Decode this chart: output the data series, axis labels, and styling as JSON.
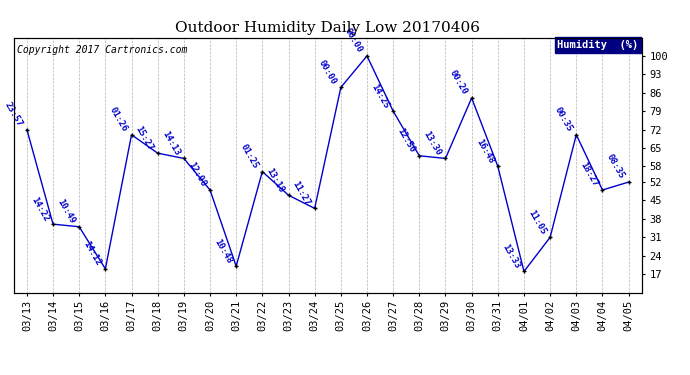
{
  "title": "Outdoor Humidity Daily Low 20170406",
  "copyright_text": "Copyright 2017 Cartronics.com",
  "legend_label": "Humidity  (%)",
  "background_color": "#ffffff",
  "plot_bg_color": "#ffffff",
  "line_color": "#0000cc",
  "marker_color": "#000000",
  "grid_color": "#aaaaaa",
  "dates": [
    "03/13",
    "03/14",
    "03/15",
    "03/16",
    "03/17",
    "03/18",
    "03/19",
    "03/20",
    "03/21",
    "03/22",
    "03/23",
    "03/24",
    "03/25",
    "03/26",
    "03/27",
    "03/28",
    "03/29",
    "03/30",
    "03/31",
    "04/01",
    "04/02",
    "04/03",
    "04/04",
    "04/05"
  ],
  "values": [
    72,
    36,
    35,
    19,
    70,
    63,
    61,
    49,
    20,
    56,
    47,
    42,
    88,
    100,
    79,
    62,
    61,
    84,
    58,
    18,
    31,
    70,
    49,
    52
  ],
  "times": [
    "23:57",
    "14:22",
    "10:49",
    "14:12",
    "01:26",
    "15:27",
    "14:13",
    "12:08",
    "10:48",
    "01:25",
    "13:18",
    "11:27",
    "00:00",
    "00:00",
    "14:25",
    "12:50",
    "13:30",
    "00:20",
    "16:48",
    "13:33",
    "11:05",
    "00:35",
    "18:27",
    "08:35"
  ],
  "ylim": [
    10,
    107
  ],
  "yticks": [
    17,
    24,
    31,
    38,
    45,
    52,
    58,
    65,
    72,
    79,
    86,
    93,
    100
  ],
  "title_fontsize": 11,
  "annotation_fontsize": 6.5,
  "tick_fontsize": 7.5,
  "copyright_fontsize": 7,
  "legend_fontsize": 7.5
}
